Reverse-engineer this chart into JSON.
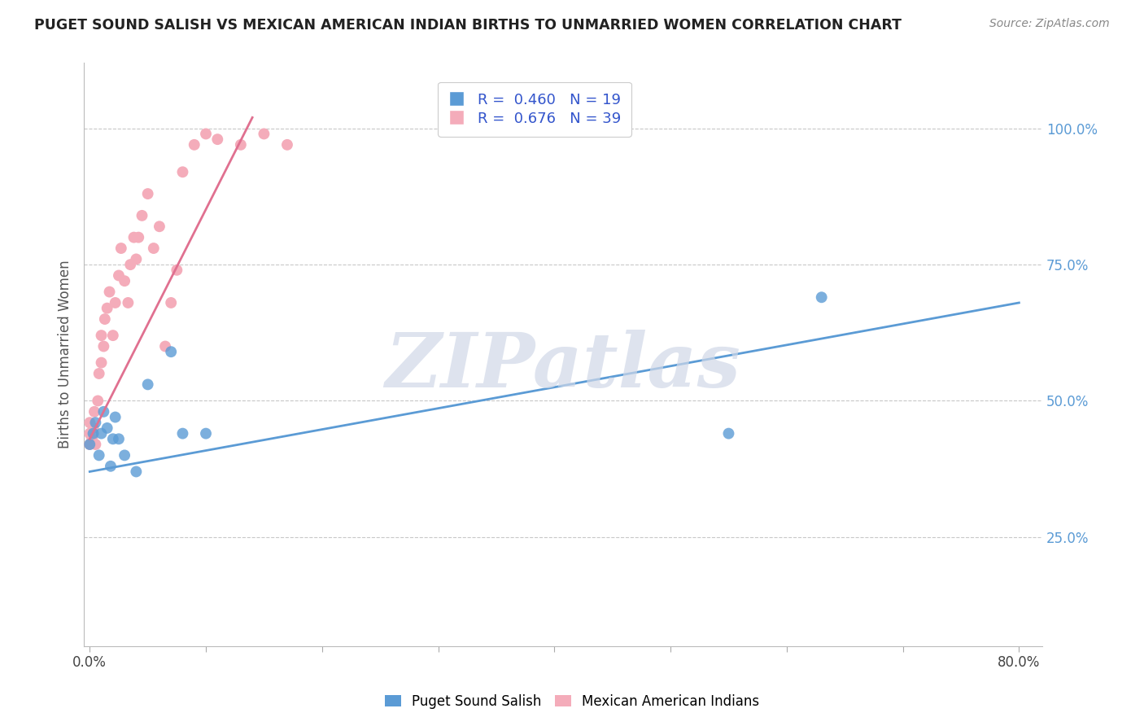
{
  "title": "PUGET SOUND SALISH VS MEXICAN AMERICAN INDIAN BIRTHS TO UNMARRIED WOMEN CORRELATION CHART",
  "source": "Source: ZipAtlas.com",
  "ylabel": "Births to Unmarried Women",
  "xlim": [
    -0.005,
    0.82
  ],
  "ylim": [
    0.05,
    1.12
  ],
  "series1_name": "Puget Sound Salish",
  "series2_name": "Mexican American Indians",
  "blue_color": "#5B9BD5",
  "pink_color": "#F4ACBA",
  "pink_line_color": "#E07090",
  "watermark": "ZIPatlas",
  "background_color": "#ffffff",
  "grid_color": "#c8c8c8",
  "blue_scatter_x": [
    0.0,
    0.003,
    0.005,
    0.008,
    0.01,
    0.012,
    0.015,
    0.018,
    0.02,
    0.022,
    0.025,
    0.03,
    0.04,
    0.05,
    0.07,
    0.08,
    0.1,
    0.55,
    0.63
  ],
  "blue_scatter_y": [
    0.42,
    0.44,
    0.46,
    0.4,
    0.44,
    0.48,
    0.45,
    0.38,
    0.43,
    0.47,
    0.43,
    0.4,
    0.37,
    0.53,
    0.59,
    0.44,
    0.44,
    0.44,
    0.69
  ],
  "pink_scatter_x": [
    0.0,
    0.0,
    0.0,
    0.002,
    0.003,
    0.004,
    0.005,
    0.007,
    0.008,
    0.01,
    0.01,
    0.012,
    0.013,
    0.015,
    0.017,
    0.02,
    0.022,
    0.025,
    0.027,
    0.03,
    0.033,
    0.035,
    0.038,
    0.04,
    0.042,
    0.045,
    0.05,
    0.055,
    0.06,
    0.065,
    0.07,
    0.075,
    0.08,
    0.09,
    0.1,
    0.11,
    0.13,
    0.15,
    0.17
  ],
  "pink_scatter_y": [
    0.42,
    0.44,
    0.46,
    0.43,
    0.45,
    0.48,
    0.42,
    0.5,
    0.55,
    0.57,
    0.62,
    0.6,
    0.65,
    0.67,
    0.7,
    0.62,
    0.68,
    0.73,
    0.78,
    0.72,
    0.68,
    0.75,
    0.8,
    0.76,
    0.8,
    0.84,
    0.88,
    0.78,
    0.82,
    0.6,
    0.68,
    0.74,
    0.92,
    0.97,
    0.99,
    0.98,
    0.97,
    0.99,
    0.97
  ],
  "blue_line_x": [
    0.0,
    0.8
  ],
  "blue_line_y": [
    0.37,
    0.68
  ],
  "pink_line_x": [
    0.0,
    0.14
  ],
  "pink_line_y": [
    0.43,
    1.02
  ],
  "R1": "0.460",
  "N1": "19",
  "R2": "0.676",
  "N2": "39",
  "xticks": [
    0.0,
    0.1,
    0.2,
    0.3,
    0.4,
    0.5,
    0.6,
    0.7,
    0.8
  ],
  "xtick_labels_show": {
    "0.0": "0.0%",
    "0.8": "80.0%"
  },
  "yticks_right": [
    0.25,
    0.5,
    0.75,
    1.0
  ],
  "ytick_labels_right": [
    "25.0%",
    "50.0%",
    "75.0%",
    "100.0%"
  ]
}
